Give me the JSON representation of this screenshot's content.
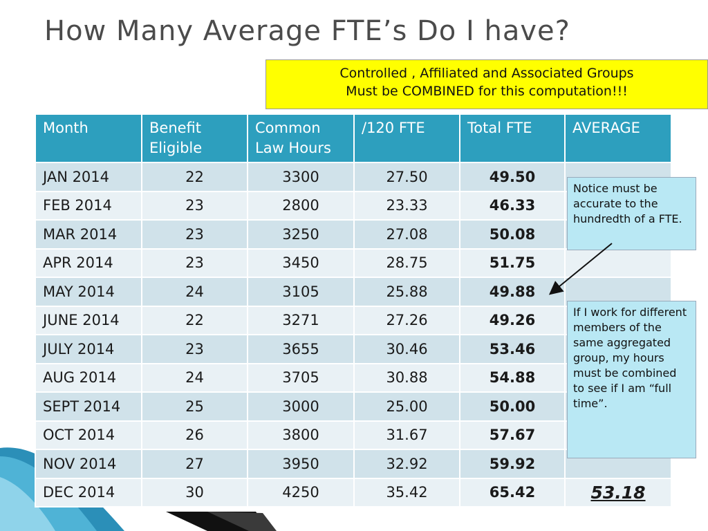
{
  "title": "How Many Average FTE’s Do I have?",
  "callout": {
    "line1": "Controlled , Affiliated and Associated Groups",
    "line2": "Must be COMBINED for this computation!!!"
  },
  "table": {
    "headers": {
      "month": "Month",
      "benefit_1": "Benefit",
      "benefit_2": "Eligible",
      "common_1": "Common",
      "common_2": "Law Hours",
      "fte120": "/120 FTE",
      "total": "Total FTE",
      "average": "AVERAGE"
    },
    "rows": [
      {
        "month": "JAN 2014",
        "benefit": "22",
        "hours": "3300",
        "fte": "27.50",
        "total": "49.50"
      },
      {
        "month": "FEB 2014",
        "benefit": "23",
        "hours": "2800",
        "fte": "23.33",
        "total": "46.33"
      },
      {
        "month": "MAR 2014",
        "benefit": "23",
        "hours": "3250",
        "fte": "27.08",
        "total": "50.08"
      },
      {
        "month": "APR 2014",
        "benefit": "23",
        "hours": "3450",
        "fte": "28.75",
        "total": "51.75"
      },
      {
        "month": "MAY 2014",
        "benefit": "24",
        "hours": "3105",
        "fte": "25.88",
        "total": "49.88"
      },
      {
        "month": "JUNE 2014",
        "benefit": "22",
        "hours": "3271",
        "fte": "27.26",
        "total": "49.26"
      },
      {
        "month": "JULY 2014",
        "benefit": "23",
        "hours": "3655",
        "fte": "30.46",
        "total": "53.46"
      },
      {
        "month": "AUG 2014",
        "benefit": "24",
        "hours": "3705",
        "fte": "30.88",
        "total": "54.88"
      },
      {
        "month": "SEPT 2014",
        "benefit": "25",
        "hours": "3000",
        "fte": "25.00",
        "total": "50.00"
      },
      {
        "month": "OCT 2014",
        "benefit": "26",
        "hours": "3800",
        "fte": "31.67",
        "total": "57.67"
      },
      {
        "month": "NOV 2014",
        "benefit": "27",
        "hours": "3950",
        "fte": "32.92",
        "total": "59.92"
      },
      {
        "month": "DEC 2014",
        "benefit": "30",
        "hours": "4250",
        "fte": "35.42",
        "total": "65.42"
      }
    ],
    "average_value": "53.18"
  },
  "notes": {
    "note1": "Notice must be accurate to the hundredth of a FTE.",
    "note2": "If I work for different members of the same aggregated group, my hours must be combined to see if I am “full time”."
  },
  "colors": {
    "header_bg": "#2d9fbe",
    "row_odd": "#d0e2ea",
    "row_even": "#e9f1f5",
    "callout_bg": "#ffff00",
    "note_bg": "#b9e8f4"
  }
}
